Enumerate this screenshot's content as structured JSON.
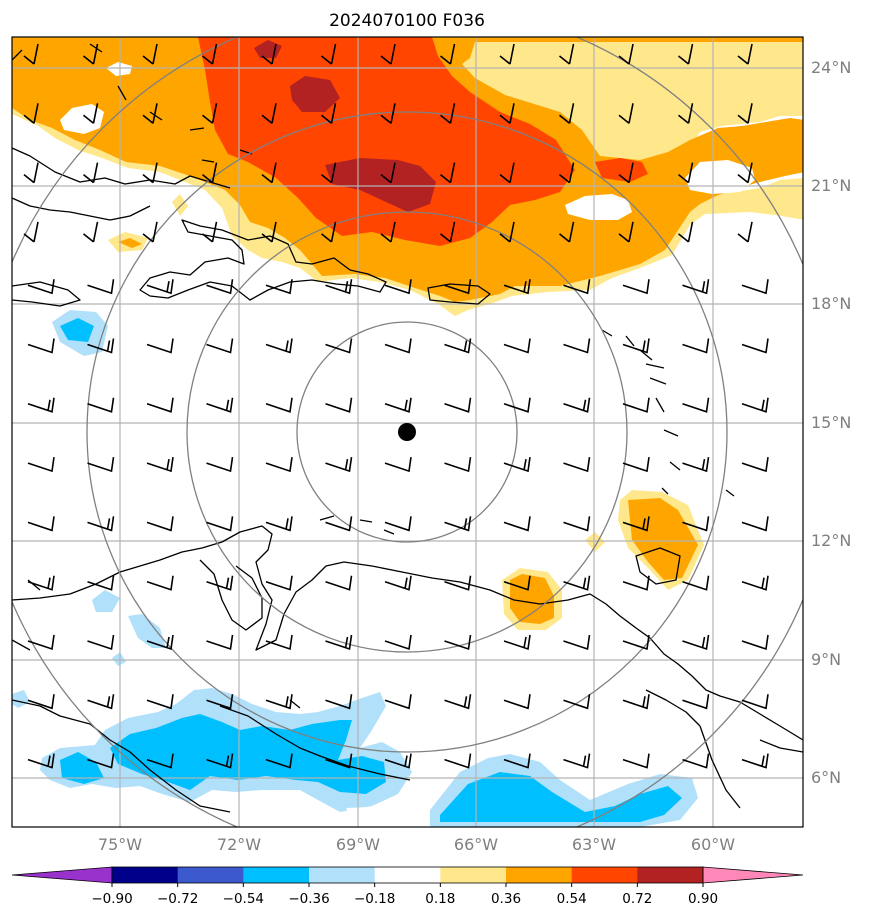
{
  "title": "2024070100 F036",
  "map": {
    "lon_range": [
      -77.75,
      -57.5
    ],
    "lat_range": [
      5.0,
      24.6
    ],
    "center": {
      "lon": -67.8,
      "lat": 14.8
    },
    "ring_radii_deg": [
      2.6,
      5.4,
      8.1,
      10.9
    ],
    "gridlines": true,
    "lat_labels": [
      "24°N",
      "21°N",
      "18°N",
      "15°N",
      "12°N",
      "9°N",
      "6°N"
    ],
    "lon_labels": [
      "75°W",
      "72°W",
      "69°W",
      "66°W",
      "63°W",
      "60°W"
    ],
    "lat_ticks": [
      24,
      21,
      18,
      15,
      12,
      9,
      6
    ],
    "lon_ticks": [
      -75,
      -72,
      -69,
      -66,
      -63,
      -60
    ],
    "gridline_color": "#b3b3b3",
    "ring_color": "#808080",
    "coast_color": "#000000"
  },
  "colorbar": {
    "tick_labels": [
      "−0.90",
      "−0.72",
      "−0.54",
      "−0.36",
      "−0.18",
      "0.18",
      "0.36",
      "0.54",
      "0.72",
      "0.90"
    ],
    "levels": [
      -0.9,
      -0.72,
      -0.54,
      -0.36,
      -0.18,
      0.18,
      0.36,
      0.54,
      0.72,
      0.9
    ],
    "colors": [
      "#9932cc",
      "#00008b",
      "#3c5acd",
      "#00bfff",
      "#b0e0fa",
      "#ffffff",
      "#ffe88c",
      "#ffa500",
      "#ff4500",
      "#b22222",
      "#ff88b8"
    ],
    "extend": "both"
  },
  "wind_barbs": {
    "description_note": "",
    "lons": [
      -77,
      -75.5,
      -74,
      -72.5,
      -71,
      -69.5,
      -68,
      -66.5,
      -65,
      -63.5,
      -62,
      -60.5,
      -59
    ],
    "lats": [
      24,
      22.5,
      21,
      19.5,
      18,
      16.5,
      15,
      13.5,
      12,
      10.5,
      9,
      7.5,
      6
    ]
  }
}
